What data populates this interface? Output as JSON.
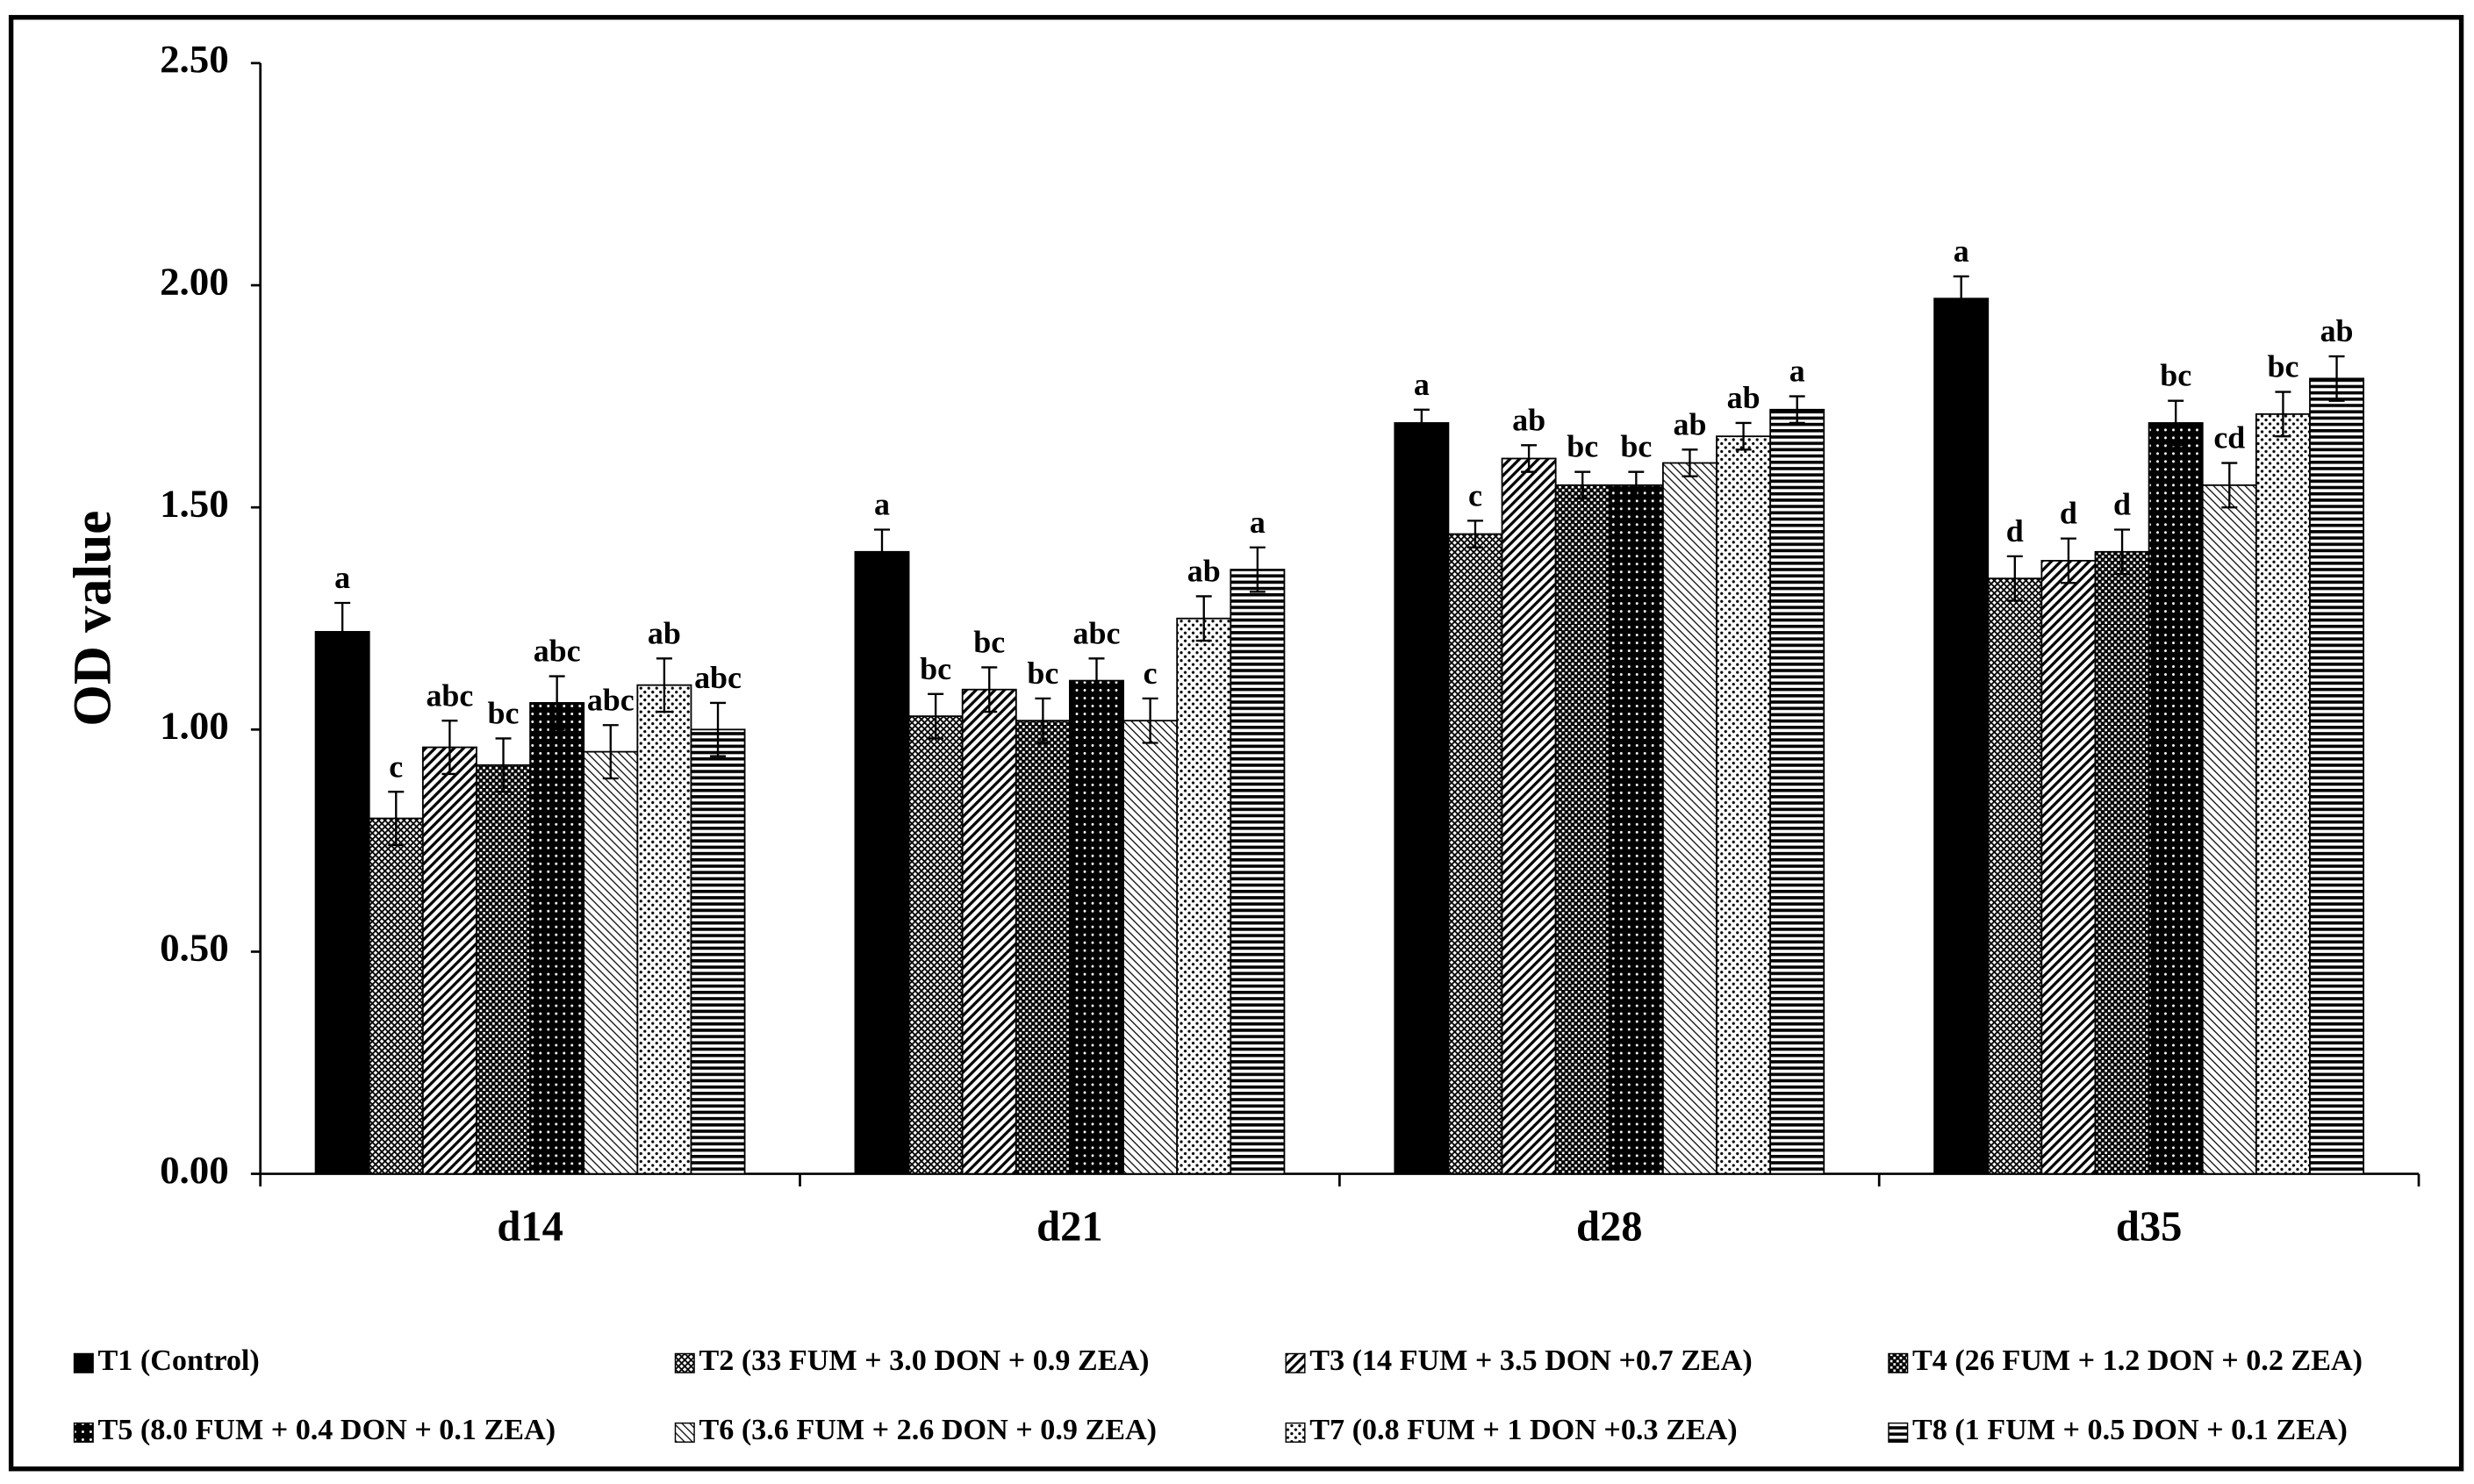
{
  "chart_data": {
    "type": "bar",
    "y_label": "OD value",
    "categories": [
      "d14",
      "d21",
      "d28",
      "d35"
    ],
    "ylim": [
      0,
      2.5
    ],
    "yticks": [
      {
        "value": 0,
        "label": "0.00"
      },
      {
        "value": 0.5,
        "label": "0.50"
      },
      {
        "value": 1,
        "label": "1.00"
      },
      {
        "value": 1.5,
        "label": "1.50"
      },
      {
        "value": 2,
        "label": "2.00"
      },
      {
        "value": 2.5,
        "label": "2.50"
      }
    ],
    "series": [
      {
        "name": "T1 (Control)",
        "pattern": "solid",
        "values": [
          1.22,
          1.4,
          1.69,
          1.97
        ],
        "errors": [
          0.065,
          0.05,
          0.03,
          0.05
        ],
        "letters": [
          "a",
          "a",
          "a",
          "a"
        ]
      },
      {
        "name": "T2 (33 FUM + 3.0 DON + 0.9 ZEA)",
        "pattern": "cross",
        "values": [
          0.8,
          1.03,
          1.44,
          1.34
        ],
        "errors": [
          0.06,
          0.05,
          0.03,
          0.05
        ],
        "letters": [
          "c",
          "bc",
          "c",
          "d"
        ]
      },
      {
        "name": "T3 (14 FUM + 3.5 DON +0.7 ZEA)",
        "pattern": "diag",
        "values": [
          0.96,
          1.09,
          1.61,
          1.38
        ],
        "errors": [
          0.06,
          0.05,
          0.03,
          0.05
        ],
        "letters": [
          "abc",
          "bc",
          "ab",
          "d"
        ]
      },
      {
        "name": "T4 (26 FUM + 1.2 DON + 0.2 ZEA)",
        "pattern": "check",
        "values": [
          0.92,
          1.02,
          1.55,
          1.4
        ],
        "errors": [
          0.06,
          0.05,
          0.03,
          0.05
        ],
        "letters": [
          "bc",
          "bc",
          "bc",
          "d"
        ]
      },
      {
        "name": "T5 (8.0 FUM + 0.4 DON + 0.1 ZEA)",
        "pattern": "darkdot",
        "values": [
          1.06,
          1.11,
          1.55,
          1.69
        ],
        "errors": [
          0.06,
          0.05,
          0.03,
          0.05
        ],
        "letters": [
          "abc",
          "abc",
          "bc",
          "bc"
        ]
      },
      {
        "name": "T6 (3.6 FUM + 2.6 DON + 0.9 ZEA)",
        "pattern": "lightdiag",
        "values": [
          0.95,
          1.02,
          1.6,
          1.55
        ],
        "errors": [
          0.06,
          0.05,
          0.03,
          0.05
        ],
        "letters": [
          "abc",
          "c",
          "ab",
          "cd"
        ]
      },
      {
        "name": "T7 (0.8 FUM + 1 DON +0.3 ZEA)",
        "pattern": "dots",
        "values": [
          1.1,
          1.25,
          1.66,
          1.71
        ],
        "errors": [
          0.06,
          0.05,
          0.03,
          0.05
        ],
        "letters": [
          "ab",
          "ab",
          "ab",
          "bc"
        ]
      },
      {
        "name": "T8 (1 FUM + 0.5 DON + 0.1 ZEA)",
        "pattern": "hlines",
        "values": [
          1.0,
          1.36,
          1.72,
          1.79
        ],
        "errors": [
          0.06,
          0.05,
          0.03,
          0.05
        ],
        "letters": [
          "abc",
          "a",
          "a",
          "ab"
        ]
      }
    ]
  }
}
